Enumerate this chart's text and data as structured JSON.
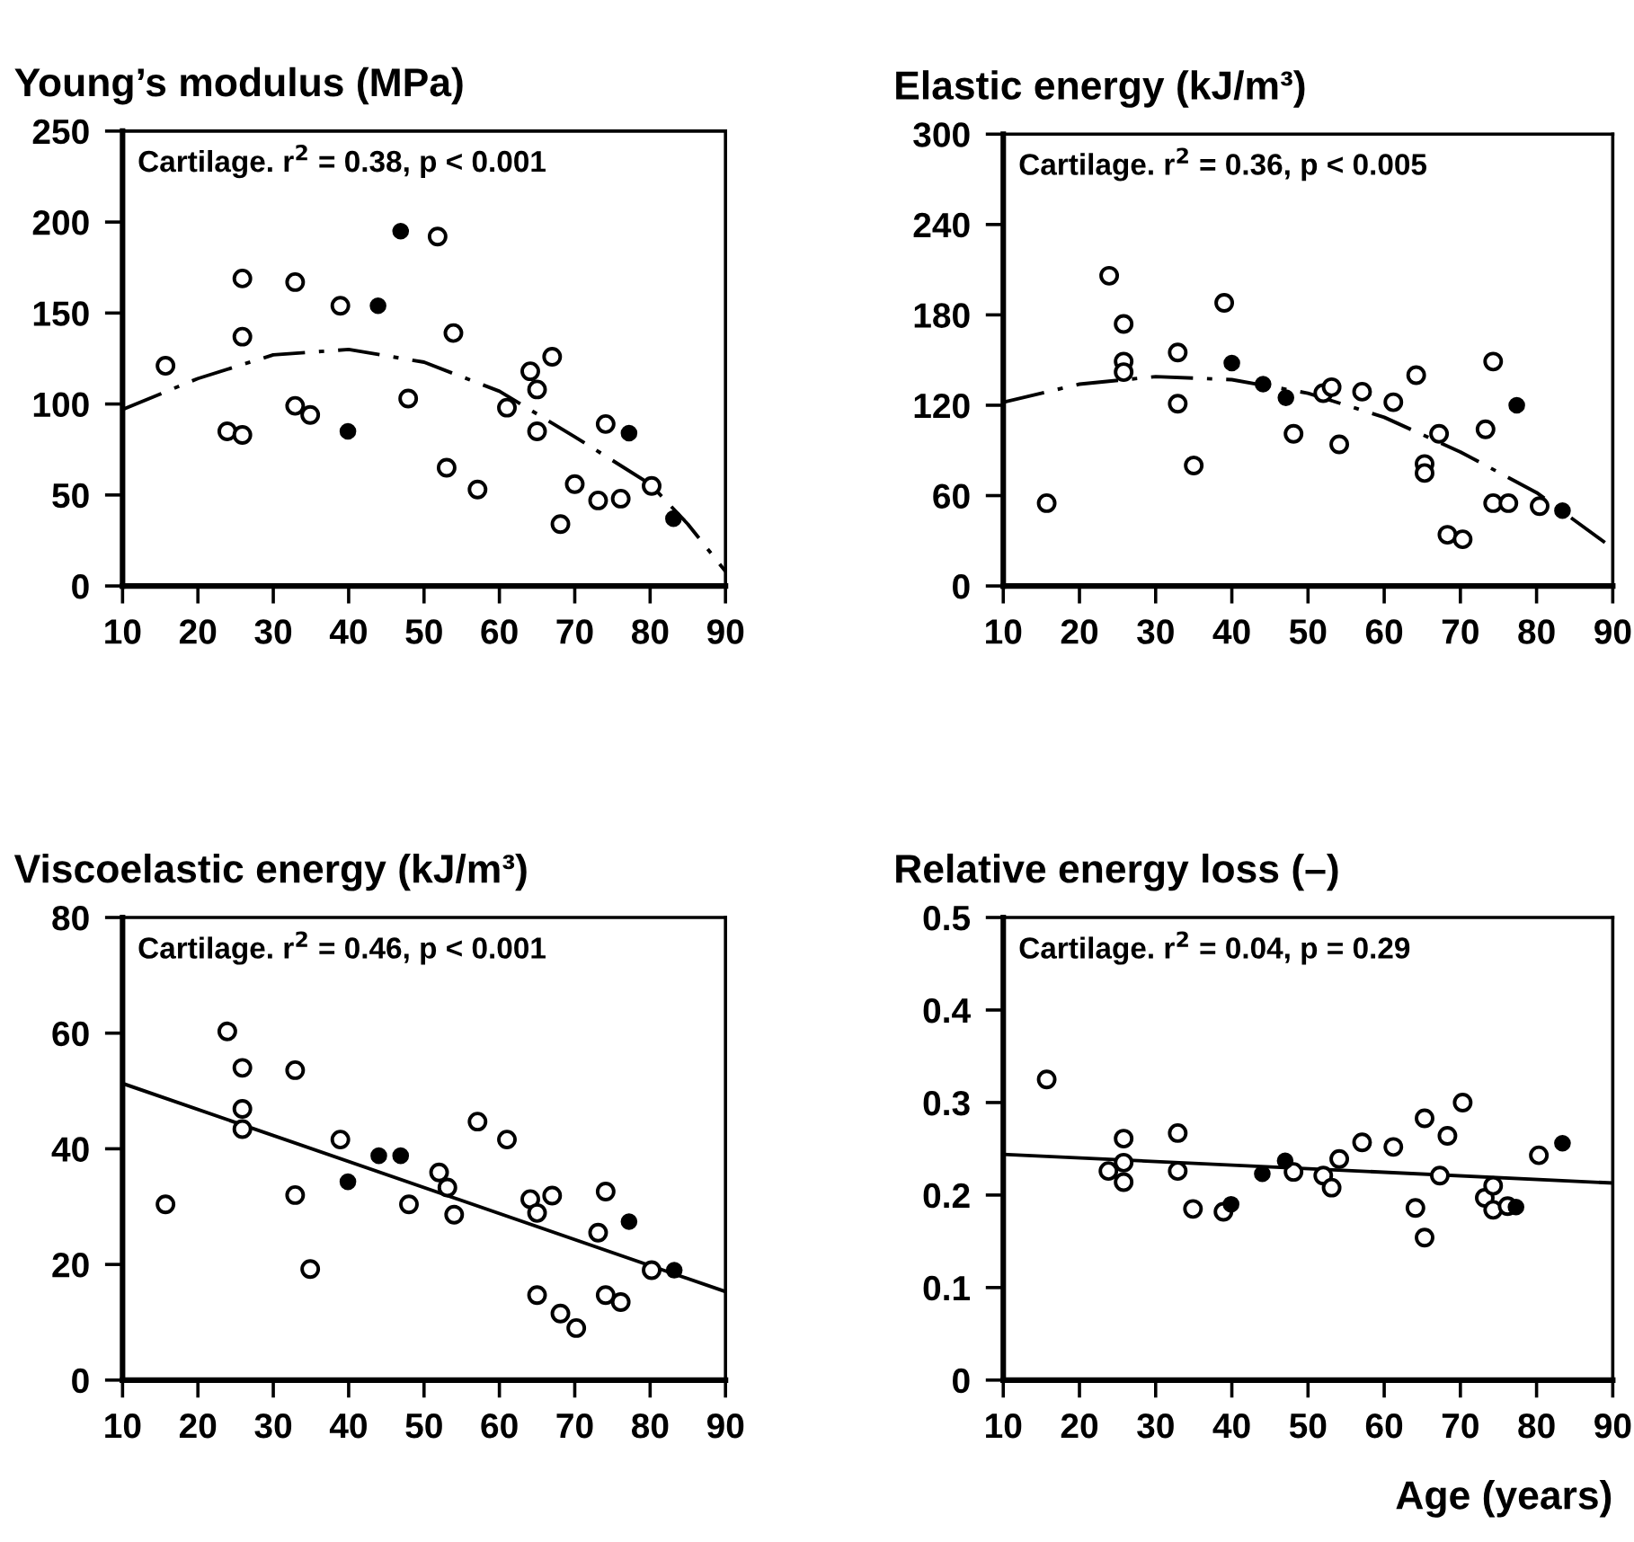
{
  "chart_data": [
    {
      "type": "scatter",
      "title": "Young’s modulus (MPa)",
      "annotations": [
        "Cartilage. r$^{2}$ = 0.38, p < 0.001"
      ],
      "xlim": [
        10,
        90
      ],
      "xticks": [
        10,
        20,
        30,
        40,
        50,
        60,
        70,
        80,
        90
      ],
      "ylim": [
        0,
        250
      ],
      "yticks": [
        0,
        50,
        100,
        150,
        200,
        250
      ],
      "grid": false,
      "legend": false,
      "marker": "circle",
      "series": [
        {
          "color": "#ffffff",
          "x": [
            15.7,
            25.9,
            25.9,
            23.9,
            25.9,
            32.9,
            32.9,
            34.9,
            38.9,
            47.9,
            51.8,
            53.9,
            53.0,
            57.1,
            61.0,
            64.1,
            65.0,
            65.0,
            67.0,
            68.1,
            70.0,
            73.1,
            74.1,
            76.1,
            80.2
          ],
          "values": [
            121,
            169,
            137,
            85,
            83,
            167,
            99,
            94,
            154,
            103,
            192,
            139,
            65,
            53,
            98,
            118,
            108,
            85,
            126,
            34,
            56,
            47,
            89,
            48,
            55
          ]
        },
        {
          "color": "#000000",
          "x": [
            46.9,
            43.9,
            39.9,
            77.2,
            83.1
          ],
          "values": [
            195,
            154,
            85,
            84,
            37
          ]
        },
        {
          "type": "line",
          "marker": "none",
          "color": "#000000",
          "line_style": "dashdot",
          "x": [
            10,
            20,
            30,
            40,
            50,
            60,
            70,
            80,
            85,
            90
          ],
          "values": [
            97,
            114,
            127,
            130,
            123,
            107,
            82,
            56,
            34,
            8
          ]
        }
      ]
    },
    {
      "type": "scatter",
      "title": "Elastic energy (kJ/m³)",
      "annotations": [
        "Cartilage. r$^{2}$ = 0.36, p < 0.005"
      ],
      "xlim": [
        10,
        90
      ],
      "xticks": [
        10,
        20,
        30,
        40,
        50,
        60,
        70,
        80,
        90
      ],
      "ylim": [
        0,
        300
      ],
      "yticks": [
        0,
        60,
        120,
        180,
        240,
        300
      ],
      "grid": false,
      "legend": false,
      "marker": "circle",
      "series": [
        {
          "color": "#ffffff",
          "x": [
            15.7,
            23.9,
            25.8,
            25.8,
            25.8,
            32.9,
            32.9,
            35.0,
            39.0,
            48.1,
            52.0,
            53.1,
            54.1,
            57.1,
            61.2,
            64.2,
            65.3,
            65.3,
            67.2,
            68.3,
            70.3,
            73.3,
            74.3,
            74.3,
            76.3,
            80.4
          ],
          "values": [
            55,
            206,
            174,
            149,
            142,
            155,
            121,
            80,
            188,
            101,
            128,
            132,
            94,
            129,
            122,
            140,
            81,
            75,
            101,
            34,
            31,
            104,
            149,
            55,
            55,
            53
          ]
        },
        {
          "color": "#000000",
          "x": [
            40.0,
            44.1,
            47.1,
            77.4,
            83.4
          ],
          "values": [
            148,
            134,
            125,
            120,
            50
          ]
        },
        {
          "type": "line",
          "marker": "none",
          "color": "#000000",
          "line_style": "dashdot",
          "x": [
            10,
            20,
            30,
            40,
            50,
            60,
            70,
            80,
            90
          ],
          "values": [
            122,
            134,
            139,
            137,
            128,
            112,
            89,
            62,
            25
          ]
        }
      ]
    },
    {
      "type": "scatter",
      "title": "Viscoelastic energy (kJ/m³)",
      "annotations": [
        "Cartilage. r$^{2}$ = 0.46, p < 0.001"
      ],
      "xlim": [
        10,
        90
      ],
      "xticks": [
        10,
        20,
        30,
        40,
        50,
        60,
        70,
        80,
        90
      ],
      "ylim": [
        0,
        80
      ],
      "yticks": [
        0,
        20,
        40,
        60,
        80
      ],
      "grid": false,
      "legend": false,
      "marker": "circle",
      "series": [
        {
          "color": "#ffffff",
          "x": [
            15.7,
            23.9,
            25.9,
            25.9,
            25.9,
            32.9,
            32.9,
            34.9,
            38.9,
            48.0,
            52.0,
            53.1,
            54.0,
            57.1,
            61.0,
            64.1,
            65.0,
            67.0,
            65.0,
            68.1,
            70.2,
            73.1,
            74.1,
            74.1,
            76.1,
            80.2
          ],
          "values": [
            30.4,
            60.3,
            54.0,
            46.9,
            43.4,
            53.6,
            32.0,
            19.2,
            41.6,
            30.4,
            35.9,
            33.3,
            28.6,
            44.7,
            41.6,
            31.3,
            28.9,
            31.9,
            14.7,
            11.5,
            9.0,
            25.5,
            32.6,
            14.7,
            13.5,
            19.0
          ]
        },
        {
          "color": "#000000",
          "x": [
            39.9,
            44.0,
            46.9,
            77.2,
            83.2
          ],
          "values": [
            34.3,
            38.8,
            38.8,
            27.4,
            19.0
          ]
        },
        {
          "type": "line",
          "marker": "none",
          "color": "#000000",
          "line_style": "solid",
          "x": [
            10,
            90
          ],
          "values": [
            51.3,
            15.3
          ]
        }
      ]
    },
    {
      "type": "scatter",
      "title": "Relative energy loss (–)",
      "xlabel": "Age (years)",
      "annotations": [
        "Cartilage. r$^{2}$ = 0.04, p = 0.29"
      ],
      "xlim": [
        10,
        90
      ],
      "xticks": [
        10,
        20,
        30,
        40,
        50,
        60,
        70,
        80,
        90
      ],
      "ylim": [
        0,
        0.5
      ],
      "yticks": [
        0,
        0.1,
        0.2,
        0.3,
        0.4,
        0.5
      ],
      "grid": false,
      "legend": false,
      "marker": "circle",
      "series": [
        {
          "color": "#ffffff",
          "x": [
            15.7,
            23.8,
            25.8,
            25.8,
            25.8,
            32.9,
            32.9,
            34.9,
            38.9,
            48.1,
            52.0,
            53.1,
            54.1,
            57.1,
            61.2,
            64.1,
            65.3,
            65.3,
            67.3,
            68.3,
            70.3,
            73.2,
            74.3,
            74.3,
            76.2,
            80.3
          ],
          "values": [
            0.325,
            0.226,
            0.261,
            0.235,
            0.214,
            0.267,
            0.226,
            0.185,
            0.182,
            0.225,
            0.221,
            0.208,
            0.239,
            0.257,
            0.252,
            0.186,
            0.283,
            0.154,
            0.221,
            0.264,
            0.3,
            0.197,
            0.21,
            0.184,
            0.188,
            0.243
          ]
        },
        {
          "color": "#000000",
          "x": [
            39.9,
            44.0,
            47.0,
            77.3,
            83.4
          ],
          "values": [
            0.19,
            0.223,
            0.237,
            0.187,
            0.256
          ]
        },
        {
          "type": "line",
          "marker": "none",
          "color": "#000000",
          "line_style": "solid",
          "x": [
            10,
            90
          ],
          "values": [
            0.244,
            0.213
          ]
        }
      ]
    }
  ]
}
